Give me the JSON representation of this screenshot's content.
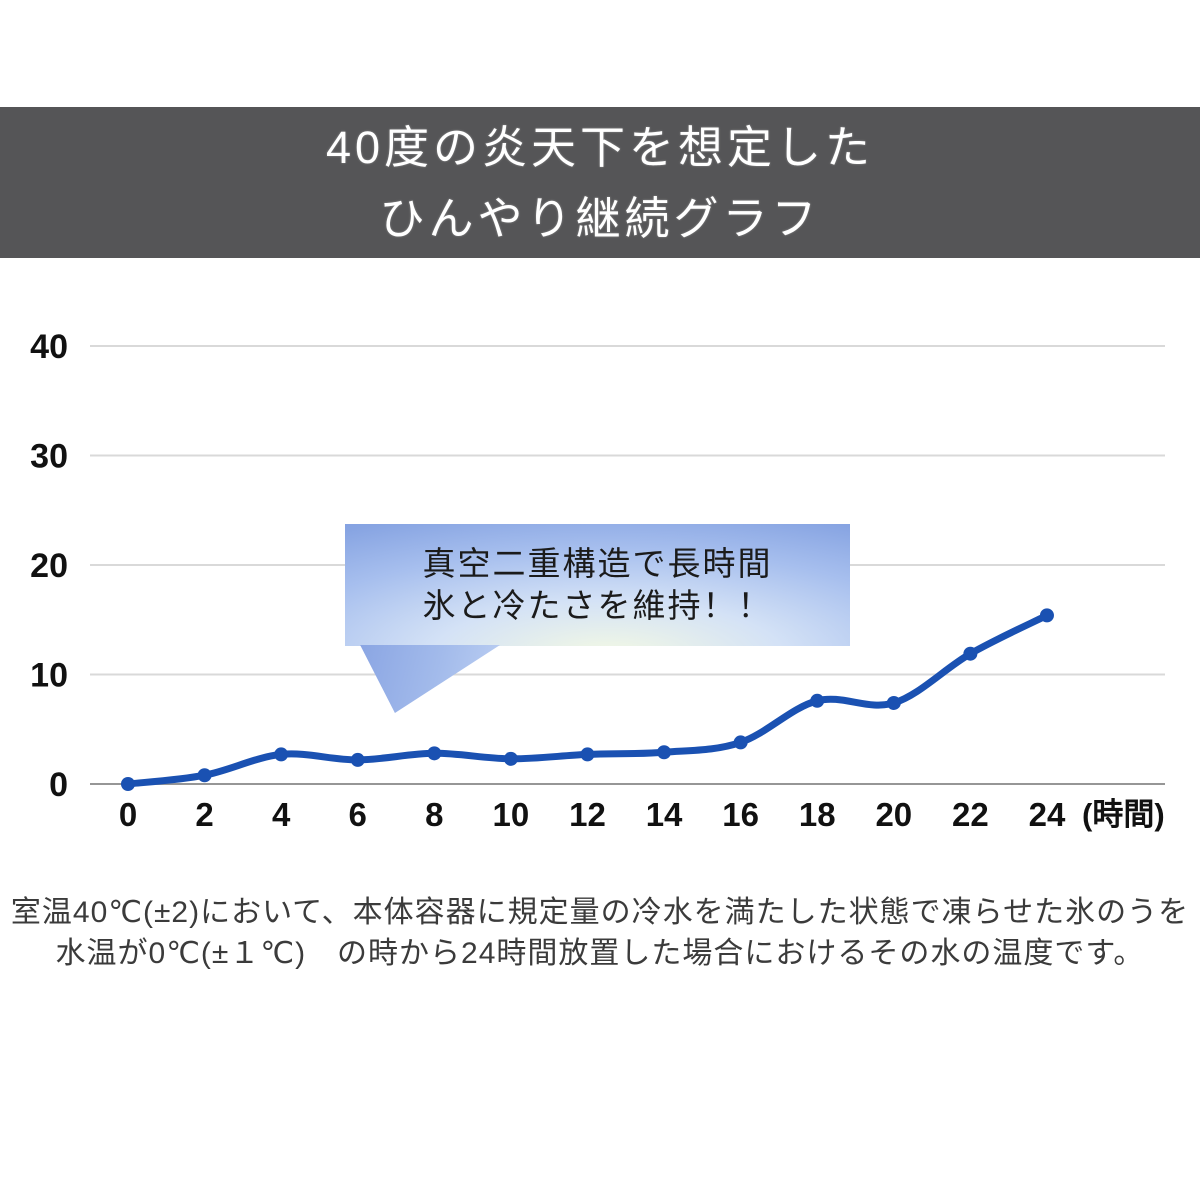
{
  "page": {
    "background": "#ffffff"
  },
  "header": {
    "background": "#555557",
    "text_color": "#ffffff",
    "title_line1": "40度の炎天下を想定した",
    "title_line2": "ひんやり継続グラフ"
  },
  "chart_data": {
    "type": "line",
    "title": "ひんやり継続グラフ（40度の炎天下を想定）",
    "x": [
      0,
      2,
      4,
      6,
      8,
      10,
      12,
      14,
      16,
      18,
      20,
      22,
      24
    ],
    "values": [
      0,
      0.8,
      2.7,
      2.2,
      2.8,
      2.3,
      2.7,
      2.9,
      3.8,
      7.6,
      7.4,
      11.9,
      15.4
    ],
    "series_name": "水の温度",
    "xlabel": "(時間)",
    "ylabel": "",
    "ylim": [
      0,
      40
    ],
    "yticks": [
      0,
      10,
      20,
      30,
      40
    ],
    "grid": true,
    "legend": false,
    "line_color": "#1a51b2",
    "marker_color": "#1a51b2",
    "gridline_color": "#d9d9d9",
    "axis_color": "#969696",
    "tick_label_color": "#111111"
  },
  "callout": {
    "line1": "真空二重構造で長時間",
    "line2": "氷と冷たさを維持！！",
    "edge_color": "#7d9bdf",
    "glow_color": "#f3f9e4",
    "text_color": "#1b1b1b"
  },
  "footnote": {
    "line1": "室温40℃(±2)において、本体容器に規定量の冷水を満たした状態で凍らせた氷のうを",
    "line2": "水温が0℃(±１℃)　の時から24時間放置した場合におけるその水の温度です。"
  }
}
